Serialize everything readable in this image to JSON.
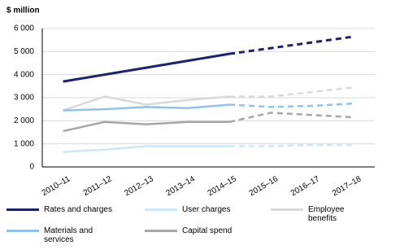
{
  "chart_data": {
    "type": "line",
    "y_label": "$ million",
    "categories": [
      "2010–11",
      "2011–12",
      "2012–13",
      "2013–14",
      "2014–15",
      "2015–16",
      "2016–17",
      "2017–18"
    ],
    "dashed_from": "2014–15",
    "series": [
      {
        "name": "Rates and charges",
        "color": "#1c2270",
        "values": [
          3700,
          4000,
          4300,
          4600,
          4900,
          5150,
          5400,
          5650
        ]
      },
      {
        "name": "User charges",
        "color": "#cde6f8",
        "values": [
          650,
          750,
          900,
          900,
          900,
          900,
          950,
          950
        ]
      },
      {
        "name": "Employee benefits",
        "color": "#d9d9d9",
        "values": [
          2450,
          3050,
          2700,
          2900,
          3050,
          3050,
          3250,
          3450
        ]
      },
      {
        "name": "Materials and services",
        "color": "#8fc3ea",
        "values": [
          2450,
          2500,
          2600,
          2550,
          2700,
          2600,
          2650,
          2750
        ]
      },
      {
        "name": "Capital spend",
        "color": "#a6a6a6",
        "values": [
          1550,
          1950,
          1850,
          1950,
          1950,
          2350,
          2250,
          2150
        ]
      }
    ],
    "ylim": [
      0,
      6000
    ],
    "yticks": [
      0,
      {
        "value": 1000,
        "label": "1 000"
      },
      {
        "value": 2000,
        "label": "2 000"
      },
      {
        "value": 3000,
        "label": "3 000"
      },
      {
        "value": 4000,
        "label": "4 000"
      },
      {
        "value": 5000,
        "label": "5 000"
      },
      {
        "value": 6000,
        "label": "6 000"
      }
    ],
    "grid": true
  }
}
